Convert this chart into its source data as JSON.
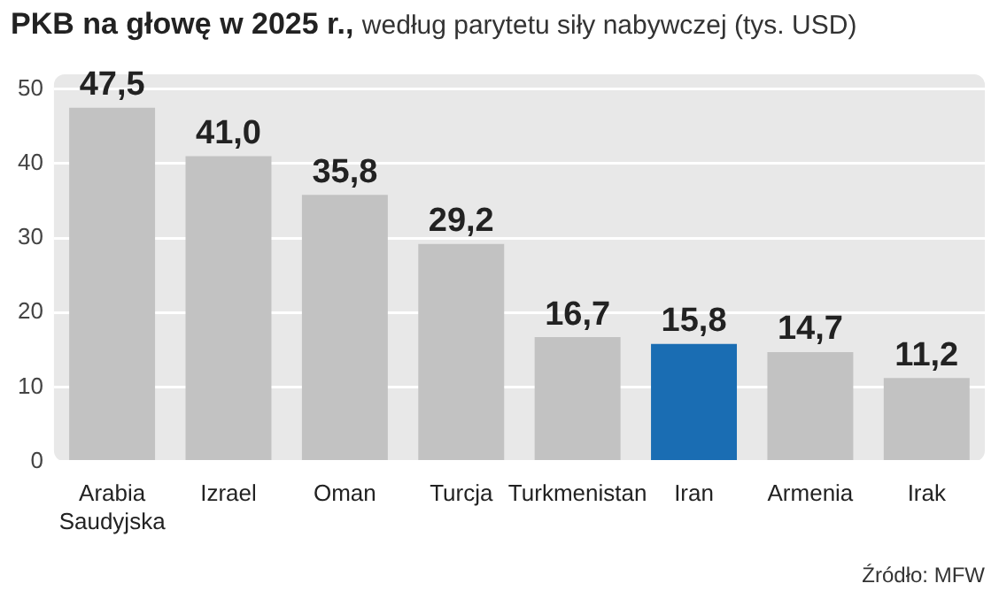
{
  "chart_data": {
    "type": "bar",
    "title": "PKB na głowę w 2025 r.,",
    "subtitle": "według parytetu siły nabywczej (tys. USD)",
    "categories": [
      "Arabia Saudyjska",
      "Izrael",
      "Oman",
      "Turcja",
      "Turkmenistan",
      "Iran",
      "Armenia",
      "Irak"
    ],
    "values": [
      47.5,
      41.0,
      35.8,
      29.2,
      16.7,
      15.8,
      14.7,
      11.2
    ],
    "colors": [
      "#c2c2c2",
      "#c2c2c2",
      "#c2c2c2",
      "#c2c2c2",
      "#c2c2c2",
      "#1a6db3",
      "#c2c2c2",
      "#c2c2c2"
    ],
    "value_labels": [
      "47,5",
      "41,0",
      "35,8",
      "29,2",
      "16,7",
      "15,8",
      "14,7",
      "11,2"
    ],
    "ylim": [
      0,
      52
    ],
    "yticks": [
      0,
      10,
      20,
      30,
      40,
      50
    ],
    "grid": "y",
    "annotations": [
      "Źródło: MFW"
    ]
  }
}
